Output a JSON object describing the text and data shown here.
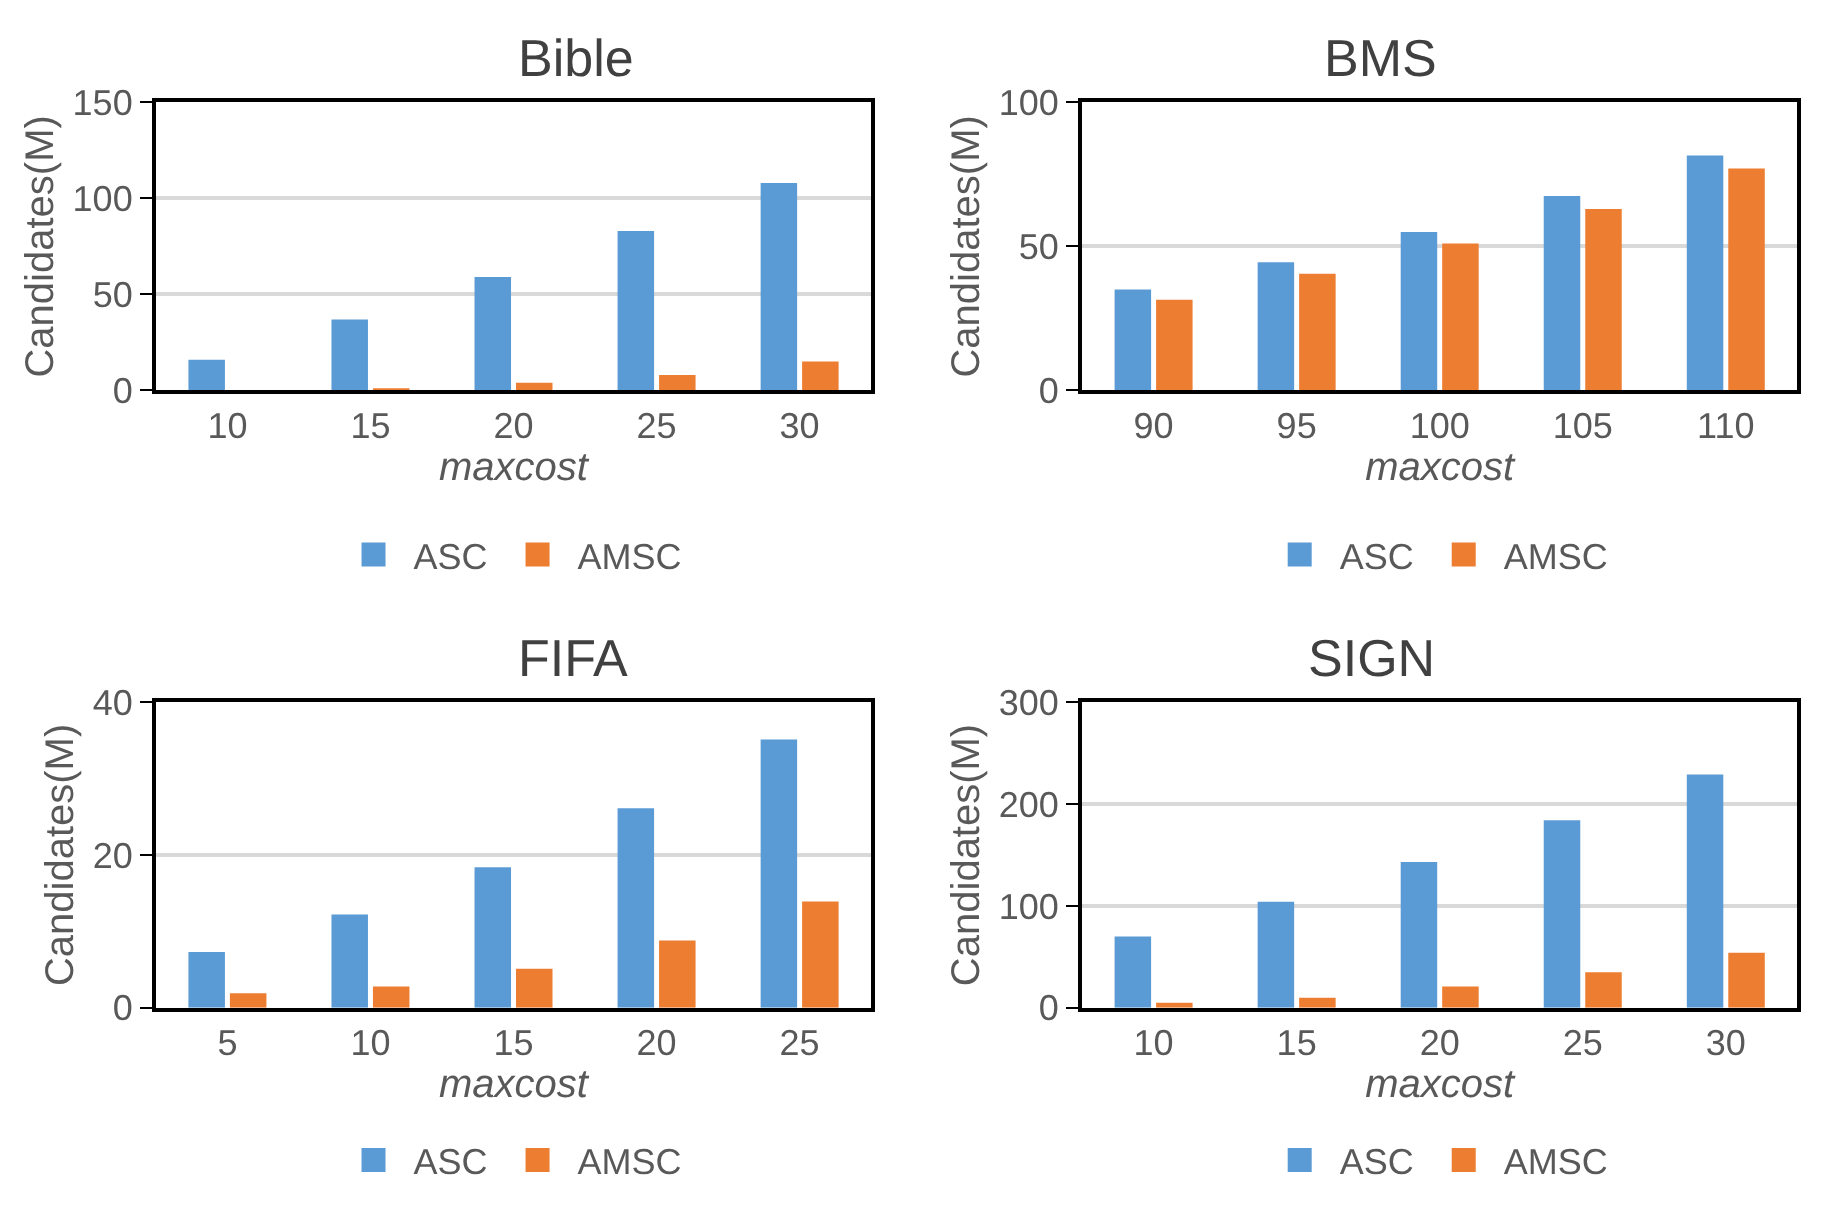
{
  "chart_data": [
    {
      "type": "bar",
      "title": "Bible",
      "xlabel": "maxcost",
      "ylabel": "Candidates(M)",
      "categories": [
        "10",
        "15",
        "20",
        "25",
        "30"
      ],
      "series": [
        {
          "name": "ASC",
          "color": "#5b9bd5",
          "values": [
            16,
            37,
            59,
            83,
            108
          ]
        },
        {
          "name": "AMSC",
          "color": "#ed7d31",
          "values": [
            null,
            1,
            4,
            8,
            15
          ]
        }
      ],
      "ylim": [
        0,
        150
      ],
      "yticks": [
        0,
        50,
        100,
        150
      ],
      "grid": "y",
      "legend": "bottom"
    },
    {
      "type": "bar",
      "title": "BMS",
      "xlabel": "maxcost",
      "ylabel": "Candidates(M)",
      "categories": [
        "90",
        "95",
        "100",
        "105",
        "110"
      ],
      "series": [
        {
          "name": "ASC",
          "color": "#5b9bd5",
          "values": [
            35,
            44.5,
            55,
            67.5,
            81.5
          ]
        },
        {
          "name": "AMSC",
          "color": "#ed7d31",
          "values": [
            31.5,
            40.5,
            51,
            63,
            77
          ]
        }
      ],
      "ylim": [
        0,
        100
      ],
      "yticks": [
        0,
        50,
        100
      ],
      "grid": "y",
      "legend": "bottom"
    },
    {
      "type": "bar",
      "title": "FIFA",
      "xlabel": "maxcost",
      "ylabel": "Candidates(M)",
      "categories": [
        "5",
        "10",
        "15",
        "20",
        "25"
      ],
      "series": [
        {
          "name": "ASC",
          "color": "#5b9bd5",
          "values": [
            7.3,
            12.2,
            18.4,
            26.1,
            35.1
          ]
        },
        {
          "name": "AMSC",
          "color": "#ed7d31",
          "values": [
            1.9,
            2.8,
            5.1,
            8.8,
            13.9
          ]
        }
      ],
      "ylim": [
        0,
        40
      ],
      "yticks": [
        0,
        20,
        40
      ],
      "grid": "y",
      "legend": "bottom"
    },
    {
      "type": "bar",
      "title": "SIGN",
      "xlabel": "maxcost",
      "ylabel": "Candidates(M)",
      "categories": [
        "10",
        "15",
        "20",
        "25",
        "30"
      ],
      "series": [
        {
          "name": "ASC",
          "color": "#5b9bd5",
          "values": [
            70,
            104,
            143,
            184,
            229
          ]
        },
        {
          "name": "AMSC",
          "color": "#ed7d31",
          "values": [
            5,
            10,
            21,
            35,
            54
          ]
        }
      ],
      "ylim": [
        0,
        300
      ],
      "yticks": [
        0,
        100,
        200,
        300
      ],
      "grid": "y",
      "legend": "bottom"
    }
  ]
}
